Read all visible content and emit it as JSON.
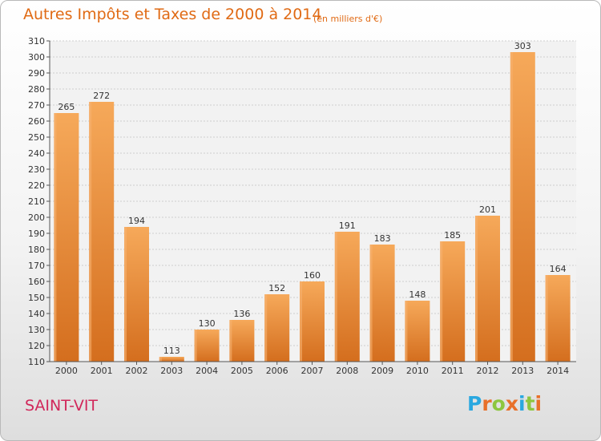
{
  "header": {
    "title": "Autres Impôts et Taxes de 2000 à 2014",
    "subtitle": "(en milliers d'€)"
  },
  "footer": {
    "commune": "SAINT-VIT",
    "logo_text": "Proxiti",
    "logo_letters": [
      "P",
      "r",
      "o",
      "x",
      "i",
      "t",
      "i"
    ],
    "logo_colors": [
      "#2aa8e0",
      "#e8702a",
      "#8dc63f",
      "#e8702a",
      "#2aa8e0",
      "#8dc63f",
      "#e8702a"
    ]
  },
  "chart_data": {
    "type": "bar",
    "title": "Autres Impôts et Taxes de 2000 à 2014",
    "subtitle": "(en milliers d'€)",
    "xlabel": "",
    "ylabel": "",
    "categories": [
      "2000",
      "2001",
      "2002",
      "2003",
      "2004",
      "2005",
      "2006",
      "2007",
      "2008",
      "2009",
      "2010",
      "2011",
      "2012",
      "2013",
      "2014"
    ],
    "values": [
      265,
      272,
      194,
      113,
      130,
      136,
      152,
      160,
      191,
      183,
      148,
      185,
      201,
      303,
      164
    ],
    "ylim": [
      110,
      310
    ],
    "yticks": [
      110,
      120,
      130,
      140,
      150,
      160,
      170,
      180,
      190,
      200,
      210,
      220,
      230,
      240,
      250,
      260,
      270,
      280,
      290,
      300,
      310
    ],
    "grid": true,
    "bar_color": "#f0903a",
    "bar_color_dark": "#d06a1e",
    "label_color": "#333333"
  }
}
